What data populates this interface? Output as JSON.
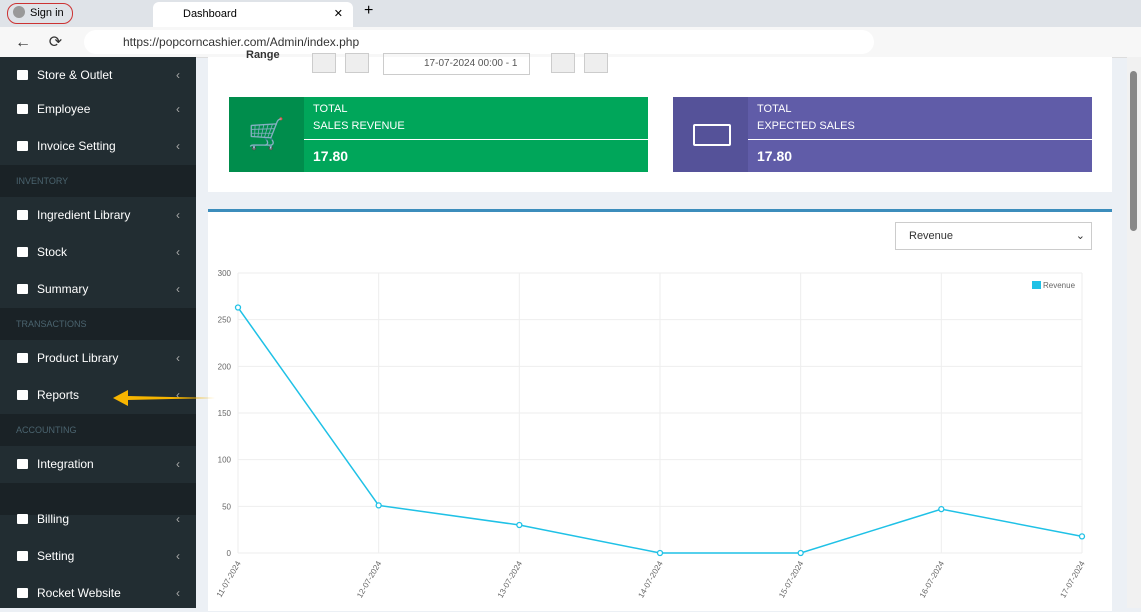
{
  "browser": {
    "sign_in": "Sign in",
    "tab_title": "Dashboard",
    "url": "https://popcorncashier.com/Admin/index.php"
  },
  "sidebar": {
    "items": [
      {
        "label": "Store & Outlet"
      },
      {
        "label": "Employee"
      },
      {
        "label": "Invoice Setting"
      },
      {
        "header": "INVENTORY"
      },
      {
        "label": "Ingredient Library"
      },
      {
        "label": "Stock"
      },
      {
        "label": "Summary"
      },
      {
        "header": "TRANSACTIONS"
      },
      {
        "label": "Product Library"
      },
      {
        "label": "Reports"
      },
      {
        "header": "ACCOUNTING"
      },
      {
        "label": "Integration"
      },
      {
        "header": ""
      },
      {
        "label": "Billing"
      },
      {
        "label": "Setting"
      },
      {
        "label": "Rocket Website"
      }
    ]
  },
  "filter": {
    "range_label": "Range",
    "date": "17-07-2024 00:00 - 1"
  },
  "cards": [
    {
      "line1": "TOTAL",
      "line2": "SALES REVENUE",
      "value": "17.80"
    },
    {
      "line1": "TOTAL",
      "line2": "EXPECTED SALES",
      "value": "17.80"
    }
  ],
  "dropdown": "Revenue",
  "chart_data": {
    "type": "line",
    "categories": [
      "11-07-2024",
      "12-07-2024",
      "13-07-2024",
      "14-07-2024",
      "15-07-2024",
      "16-07-2024",
      "17-07-2024"
    ],
    "series": [
      {
        "name": "Revenue",
        "color": "#1fc1e6",
        "values": [
          263,
          51,
          30,
          0,
          0,
          47,
          17.8
        ]
      }
    ],
    "ylim": [
      0,
      300
    ],
    "yticks": [
      0,
      50,
      100,
      150,
      200,
      250,
      300
    ],
    "grid": true,
    "legend": "top-right"
  }
}
